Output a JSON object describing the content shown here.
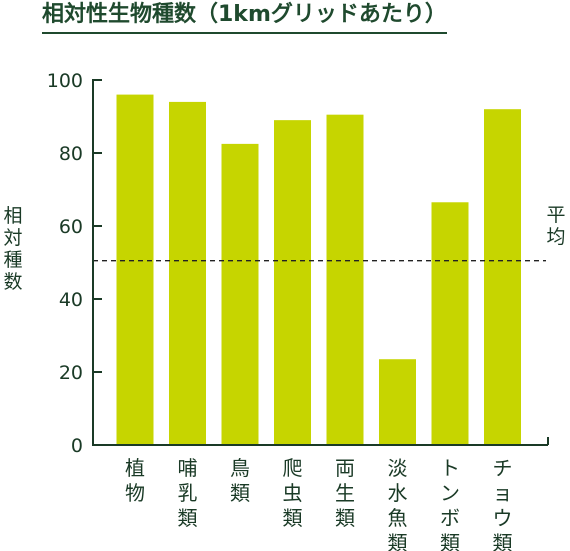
{
  "chart_data": {
    "type": "bar",
    "title": "相対性生物種数（1kmグリッドあたり）",
    "ylabel": "相対種数",
    "categories": [
      "植物",
      "哺乳類",
      "鳥類",
      "爬虫類",
      "両生類",
      "淡水魚類",
      "トンボ類",
      "チョウ類"
    ],
    "values": [
      96,
      94,
      82.5,
      89,
      90.5,
      23.5,
      66.5,
      92
    ],
    "ylim": [
      0,
      100
    ],
    "yticks": [
      0,
      20,
      40,
      60,
      80,
      100
    ],
    "reference_line": {
      "value": 50.5,
      "label": "平均",
      "style": "dashed"
    },
    "grid": false,
    "legend": "none",
    "colors": {
      "bar": "#c6d500",
      "axis": "#1a3a26",
      "text": "#1a3a26",
      "title": "#1f4a2e"
    }
  }
}
